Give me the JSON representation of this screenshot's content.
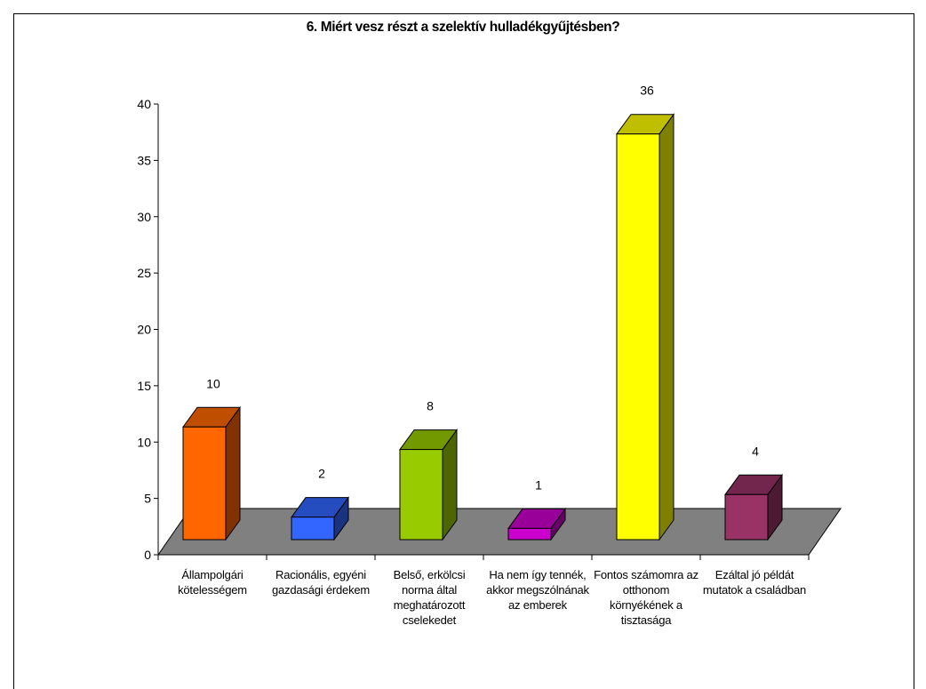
{
  "chart_data": {
    "type": "bar",
    "title": "6. Miért vesz részt a szelektív hulladékgyűjtésben?",
    "categories": [
      "Állampolgári kötelességem",
      "Racionális, egyéni gazdasági érdekem",
      "Belső, erkölcsi norma által meghatározott cselekedet",
      "Ha nem így tennék, akkor megszólnának az emberek",
      "Fontos számomra az otthonom környékének a tisztasága",
      "Ezáltal jó példát mutatok a családban"
    ],
    "values": [
      10,
      2,
      8,
      1,
      36,
      4
    ],
    "data_labels": [
      "10",
      "2",
      "8",
      "1",
      "36",
      "4"
    ],
    "ylim": [
      0,
      40
    ],
    "yticks": [
      0,
      5,
      10,
      15,
      20,
      25,
      30,
      35,
      40
    ],
    "grid": false,
    "legend": "none",
    "bar_colors": [
      {
        "front": "#ff6600",
        "top": "#c04e00",
        "side": "#803300"
      },
      {
        "front": "#3366ff",
        "top": "#264dbf",
        "side": "#1a3380"
      },
      {
        "front": "#99cc00",
        "top": "#739900",
        "side": "#4d6600"
      },
      {
        "front": "#cc00cc",
        "top": "#990099",
        "side": "#660066"
      },
      {
        "front": "#ffff00",
        "top": "#bfbf00",
        "side": "#808000"
      },
      {
        "front": "#993366",
        "top": "#73264d",
        "side": "#4d1a33"
      }
    ],
    "floor_color": "#808080"
  }
}
